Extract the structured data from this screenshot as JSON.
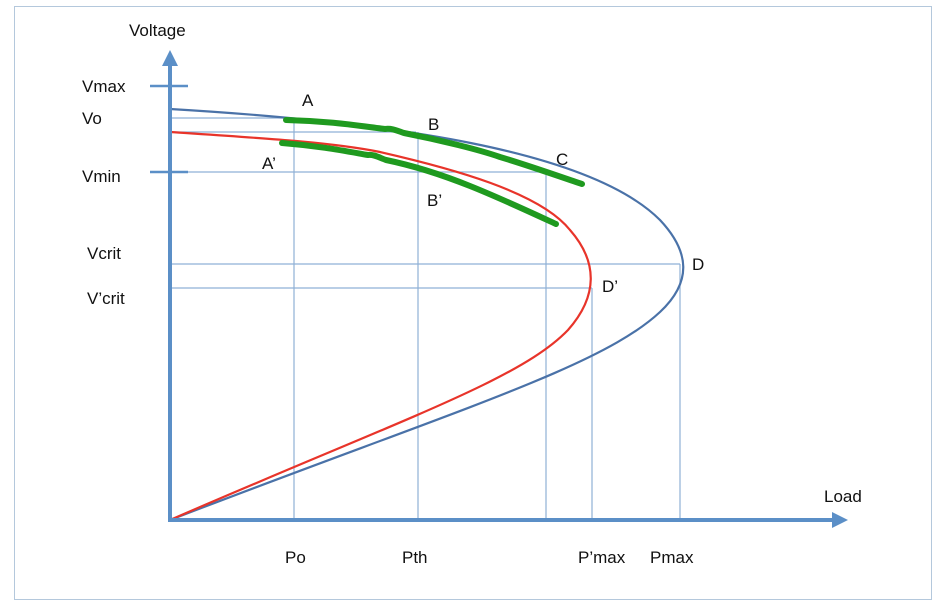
{
  "axes": {
    "y_title": "Voltage",
    "x_title": "Load"
  },
  "y_ticks": {
    "vmax": "Vmax",
    "vo": "Vo",
    "vmin": "Vmin",
    "vcrit": "Vcrit",
    "vcrit_prime": "V’crit"
  },
  "x_ticks": {
    "po": "Po",
    "pth": "Pth",
    "pmax_prime": "P’max",
    "pmax": "Pmax"
  },
  "points": {
    "a": "A",
    "b": "B",
    "c": "C",
    "d": "D",
    "a_prime": "A’",
    "b_prime": "B’",
    "d_prime": "D’"
  },
  "colors": {
    "axis": "#5b8fc7",
    "guide": "#8fb0d6",
    "curve_blue": "#4a72a8",
    "curve_red": "#e8342a",
    "operating_band": "#1f9a1f"
  }
}
